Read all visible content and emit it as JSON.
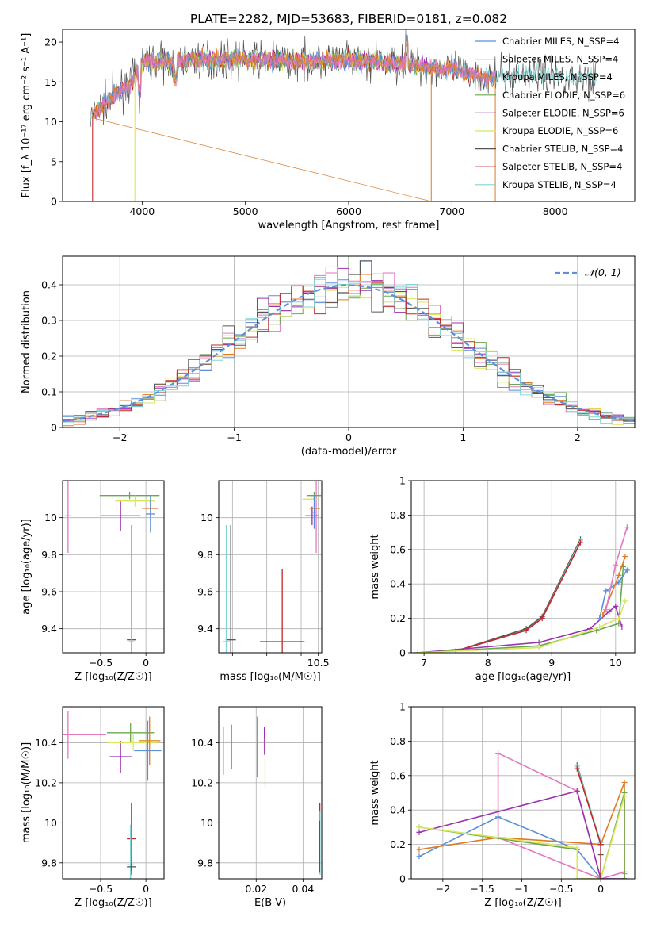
{
  "figure": {
    "title": "PLATE=2282, MJD=53683, FIBERID=0181, z=0.082"
  },
  "colors": {
    "chabrier_miles": "#5b8fd6",
    "salpeter_miles": "#e377c2",
    "kroupa_miles": "#e07b23",
    "chabrier_elodie": "#6aa84f",
    "salpeter_elodie": "#9b30b0",
    "kroupa_elodie": "#d8e85a",
    "chabrier_stelib": "#555555",
    "salpeter_stelib": "#c0282a",
    "kroupa_stelib": "#7fd6d6",
    "grid": "#b0b0b0",
    "gauss": "#5b8fd6"
  },
  "chart_data": [
    {
      "id": "spectrum",
      "type": "line",
      "xlabel": "wavelength [Angstrom, rest frame]",
      "ylabel": "Flux [f_λ 10⁻¹⁷ erg cm⁻² s⁻¹ A⁻¹]",
      "xlim": [
        3230,
        8770
      ],
      "ylim": [
        0,
        21.6
      ],
      "xticks": [
        4000,
        5000,
        6000,
        7000,
        8000
      ],
      "yticks": [
        0,
        5,
        10,
        15,
        20
      ],
      "grid": false,
      "legend_position": "top-right",
      "legend": [
        "Chabrier MILES, N_SSP=4",
        "Salpeter MILES, N_SSP=4",
        "Kroupa MILES, N_SSP=4",
        "Chabrier ELODIE, N_SSP=6",
        "Salpeter ELODIE, N_SSP=6",
        "Kroupa ELODIE, N_SSP=6",
        "Chabrier STELIB, N_SSP=4",
        "Salpeter STELIB, N_SSP=4",
        "Kroupa STELIB, N_SSP=4"
      ],
      "continuum": {
        "x": [
          3500,
          3700,
          3900,
          4000,
          4200,
          4500,
          5000,
          5500,
          6000,
          6500,
          7000,
          7400,
          7800,
          8200,
          8400
        ],
        "y": [
          10.5,
          13.0,
          15.0,
          17.5,
          17.5,
          17.8,
          17.8,
          17.6,
          17.8,
          17.3,
          16.5,
          15.5,
          16.0,
          15.5,
          15.8
        ]
      },
      "dips": [
        {
          "x": 3520,
          "series": "salpeter_stelib",
          "y": 0
        },
        {
          "x": 3930,
          "series": "kroupa_elodie",
          "y": 0
        },
        {
          "x": 6800,
          "series": "kroupa_miles",
          "y": 0
        },
        {
          "x": 7420,
          "series": "kroupa_miles",
          "y": 0
        }
      ]
    },
    {
      "id": "residuals",
      "type": "bar",
      "xlabel": "(data-model)/error",
      "ylabel": "Normed distribution",
      "xlim": [
        -2.5,
        2.5
      ],
      "ylim": [
        0,
        0.48
      ],
      "xticks": [
        -2,
        -1,
        0,
        1,
        2
      ],
      "yticks": [
        0.0,
        0.1,
        0.2,
        0.3,
        0.4
      ],
      "grid": true,
      "legend_position": "top-right",
      "legend": [
        "𝒩(0, 1)"
      ],
      "bin_width": 0.1
    },
    {
      "id": "age_vs_Z",
      "type": "scatter",
      "xlabel": "Z [log₁₀(Z/Z☉)]",
      "ylabel": "age  [log₁₀(age/yr)]",
      "xlim": [
        -0.92,
        0.2
      ],
      "ylim": [
        9.27,
        10.2
      ],
      "xticks": [
        -0.5,
        0.0
      ],
      "yticks": [
        9.4,
        9.6,
        9.8,
        10.0
      ],
      "grid": true,
      "points": [
        {
          "s": "salpeter_miles",
          "x": -0.86,
          "y": 10.01,
          "ex": 0.04,
          "ey": 0.2
        },
        {
          "s": "salpeter_elodie",
          "x": -0.28,
          "y": 10.01,
          "ex": 0.22,
          "ey": 0.08
        },
        {
          "s": "chabrier_elodie",
          "x": -0.18,
          "y": 10.12,
          "ex": 0.33,
          "ey": 0.02
        },
        {
          "s": "kroupa_elodie",
          "x": -0.12,
          "y": 10.09,
          "ex": 0.22,
          "ey": 0.03
        },
        {
          "s": "kroupa_miles",
          "x": 0.05,
          "y": 10.05,
          "ex": 0.09,
          "ey": 0.04
        },
        {
          "s": "chabrier_miles",
          "x": 0.05,
          "y": 10.02,
          "ex": 0.05,
          "ey": 0.1
        },
        {
          "s": "chabrier_stelib",
          "x": -0.16,
          "y": 9.34,
          "ex": 0.05,
          "ey": 0.62
        },
        {
          "s": "kroupa_stelib",
          "x": -0.16,
          "y": 9.33,
          "ex": 0.03,
          "ey": 0.63
        }
      ]
    },
    {
      "id": "age_vs_mass",
      "type": "scatter",
      "xlabel": "mass [log₁₀(M/M☉)]",
      "ylabel": "",
      "xlim": [
        7.6,
        10.6
      ],
      "ylim": [
        9.27,
        10.2
      ],
      "xticks": [
        8.0,
        9.0,
        10.0,
        10.5
      ],
      "xtick_labels": [
        "",
        "",
        "",
        "10.5"
      ],
      "yticks": [
        9.4,
        9.6,
        9.8,
        10.0
      ],
      "grid": true,
      "points": [
        {
          "s": "salpeter_miles",
          "x": 10.44,
          "y": 10.01,
          "ex": 0.03,
          "ey": 0.2
        },
        {
          "s": "salpeter_elodie",
          "x": 10.32,
          "y": 10.01,
          "ex": 0.2,
          "ey": 0.05
        },
        {
          "s": "kroupa_elodie",
          "x": 10.29,
          "y": 10.1,
          "ex": 0.25,
          "ey": 0.02
        },
        {
          "s": "chabrier_elodie",
          "x": 10.38,
          "y": 10.12,
          "ex": 0.2,
          "ey": 0.02
        },
        {
          "s": "kroupa_miles",
          "x": 10.4,
          "y": 10.05,
          "ex": 0.15,
          "ey": 0.05
        },
        {
          "s": "chabrier_miles",
          "x": 10.38,
          "y": 10.03,
          "ex": 0.05,
          "ey": 0.09
        },
        {
          "s": "salpeter_stelib",
          "x": 9.45,
          "y": 9.33,
          "ex": 0.65,
          "ey": 0.39
        },
        {
          "s": "chabrier_stelib",
          "x": 7.95,
          "y": 9.34,
          "ex": 0.15,
          "ey": 0.62
        },
        {
          "s": "kroupa_stelib",
          "x": 7.82,
          "y": 9.33,
          "ex": 0.1,
          "ey": 0.63
        }
      ]
    },
    {
      "id": "massweight_vs_age",
      "type": "line",
      "xlabel": "age  [log₁₀(age/yr)]",
      "ylabel": "mass weight",
      "xlim": [
        6.8,
        10.3
      ],
      "ylim": [
        0,
        1.0
      ],
      "xticks": [
        7,
        8,
        9,
        10
      ],
      "yticks": [
        0.0,
        0.2,
        0.4,
        0.6,
        0.8,
        1.0
      ],
      "grid": true,
      "series": [
        {
          "s": "chabrier_stelib",
          "x": [
            7.5,
            8.6,
            8.85,
            9.45
          ],
          "y": [
            0.01,
            0.14,
            0.21,
            0.66
          ]
        },
        {
          "s": "kroupa_stelib",
          "x": [
            7.5,
            8.6,
            8.85,
            9.45
          ],
          "y": [
            0.01,
            0.13,
            0.2,
            0.65
          ]
        },
        {
          "s": "salpeter_stelib",
          "x": [
            7.5,
            8.6,
            8.85,
            9.45
          ],
          "y": [
            0.01,
            0.13,
            0.2,
            0.64
          ]
        },
        {
          "s": "salpeter_elodie",
          "x": [
            6.9,
            8.8,
            9.6,
            9.9,
            10.0,
            10.1
          ],
          "y": [
            0.0,
            0.06,
            0.14,
            0.24,
            0.27,
            0.15
          ]
        },
        {
          "s": "chabrier_elodie",
          "x": [
            6.9,
            8.8,
            9.7,
            10.05,
            10.12
          ],
          "y": [
            0.0,
            0.04,
            0.13,
            0.17,
            0.5
          ]
        },
        {
          "s": "kroupa_elodie",
          "x": [
            6.9,
            8.8,
            9.75,
            10.05,
            10.15
          ],
          "y": [
            0.0,
            0.03,
            0.15,
            0.2,
            0.3
          ]
        },
        {
          "s": "chabrier_miles",
          "x": [
            9.75,
            9.85,
            10.05,
            10.18
          ],
          "y": [
            0.2,
            0.36,
            0.41,
            0.48
          ]
        },
        {
          "s": "kroupa_miles",
          "x": [
            9.8,
            10.05,
            10.15
          ],
          "y": [
            0.22,
            0.45,
            0.56
          ]
        },
        {
          "s": "salpeter_miles",
          "x": [
            9.85,
            10.0,
            10.18
          ],
          "y": [
            0.25,
            0.51,
            0.73
          ]
        }
      ]
    },
    {
      "id": "mass_vs_Z",
      "type": "scatter",
      "xlabel": "Z [log₁₀(Z/Z☉)]",
      "ylabel": "mass [log₁₀(M/M☉)]",
      "xlim": [
        -0.92,
        0.2
      ],
      "ylim": [
        9.72,
        10.58
      ],
      "xticks": [
        -0.5,
        0.0
      ],
      "yticks": [
        9.8,
        10.0,
        10.2,
        10.4
      ],
      "grid": true,
      "points": [
        {
          "s": "salpeter_miles",
          "x": -0.86,
          "y": 10.44,
          "ex": 0.42,
          "ey": 0.12
        },
        {
          "s": "salpeter_elodie",
          "x": -0.28,
          "y": 10.33,
          "ex": 0.12,
          "ey": 0.08
        },
        {
          "s": "chabrier_elodie",
          "x": -0.17,
          "y": 10.45,
          "ex": 0.26,
          "ey": 0.05
        },
        {
          "s": "kroupa_elodie",
          "x": -0.14,
          "y": 10.4,
          "ex": 0.28,
          "ey": 0.04
        },
        {
          "s": "chabrier_miles",
          "x": 0.02,
          "y": 10.36,
          "ex": 0.15,
          "ey": 0.15
        },
        {
          "s": "kroupa_miles",
          "x": 0.04,
          "y": 10.41,
          "ex": 0.12,
          "ey": 0.12
        },
        {
          "s": "salpeter_stelib",
          "x": -0.16,
          "y": 9.92,
          "ex": 0.05,
          "ey": 0.18
        },
        {
          "s": "kroupa_stelib",
          "x": -0.17,
          "y": 9.79,
          "ex": 0.04,
          "ey": 0.2
        },
        {
          "s": "chabrier_stelib",
          "x": -0.16,
          "y": 9.78,
          "ex": 0.05,
          "ey": 0.02
        }
      ]
    },
    {
      "id": "mass_vs_ebv",
      "type": "scatter",
      "xlabel": "E(B-V)",
      "ylabel": "",
      "xlim": [
        0.004,
        0.048
      ],
      "ylim": [
        9.72,
        10.58
      ],
      "xticks": [
        0.02,
        0.04
      ],
      "yticks": [
        9.8,
        10.0,
        10.2,
        10.4
      ],
      "grid": true,
      "points": [
        {
          "s": "salpeter_miles",
          "x": 0.006,
          "y": 10.36,
          "ey": 0.12
        },
        {
          "s": "kroupa_miles",
          "x": 0.0095,
          "y": 10.38,
          "ey": 0.11
        },
        {
          "s": "chabrier_miles",
          "x": 0.0205,
          "y": 10.38,
          "ey": 0.15
        },
        {
          "s": "salpeter_elodie",
          "x": 0.0235,
          "y": 10.41,
          "ey": 0.07
        },
        {
          "s": "kroupa_elodie",
          "x": 0.0238,
          "y": 10.3,
          "ey": 0.12
        },
        {
          "s": "salpeter_stelib",
          "x": 0.0472,
          "y": 9.98,
          "ey": 0.12
        },
        {
          "s": "kroupa_stelib",
          "x": 0.0473,
          "y": 9.9,
          "ey": 0.16
        },
        {
          "s": "chabrier_stelib",
          "x": 0.0471,
          "y": 9.88,
          "ey": 0.13
        }
      ]
    },
    {
      "id": "massweight_vs_Z",
      "type": "line",
      "xlabel": "Z [log₁₀(Z/Z☉)]",
      "ylabel": "mass weight",
      "xlim": [
        -2.4,
        0.43
      ],
      "ylim": [
        0,
        1.0
      ],
      "xticks": [
        -2.0,
        -1.5,
        -1.0,
        -0.5,
        0.0
      ],
      "yticks": [
        0.0,
        0.2,
        0.4,
        0.6,
        0.8,
        1.0
      ],
      "grid": true,
      "series": [
        {
          "s": "salpeter_miles",
          "x": [
            -0.0,
            -1.3,
            -1.3,
            -0.3,
            0.0,
            0.3,
            0.3
          ],
          "y": [
            0.0,
            0.24,
            0.73,
            0.51,
            0.0,
            0.04,
            0.03
          ]
        },
        {
          "s": "chabrier_miles",
          "x": [
            -2.3,
            -1.3,
            -0.3,
            0.0,
            0.3
          ],
          "y": [
            0.13,
            0.36,
            0.17,
            0.0,
            0.0
          ]
        },
        {
          "s": "kroupa_miles",
          "x": [
            -2.3,
            -1.3,
            0.0,
            0.3,
            0.3
          ],
          "y": [
            0.17,
            0.24,
            0.2,
            0.56,
            0.0
          ]
        },
        {
          "s": "salpeter_elodie",
          "x": [
            -2.3,
            -0.3,
            0.0,
            0.3
          ],
          "y": [
            0.27,
            0.51,
            0.0,
            0.0
          ]
        },
        {
          "s": "chabrier_elodie",
          "x": [
            -2.3,
            -0.3,
            -0.3,
            0.0,
            0.3,
            0.3
          ],
          "y": [
            0.3,
            0.17,
            0.0,
            0.0,
            0.5,
            0.0
          ]
        },
        {
          "s": "kroupa_elodie",
          "x": [
            -2.3,
            -0.3,
            -0.3,
            0.0,
            0.3
          ],
          "y": [
            0.3,
            0.18,
            0.0,
            0.0,
            0.48
          ]
        },
        {
          "s": "chabrier_stelib",
          "x": [
            -0.3,
            0.0,
            0.0,
            0.0
          ],
          "y": [
            0.66,
            0.2,
            0.14,
            0.0
          ]
        },
        {
          "s": "kroupa_stelib",
          "x": [
            -0.3,
            0.0,
            0.0
          ],
          "y": [
            0.65,
            0.21,
            0.0
          ]
        },
        {
          "s": "salpeter_stelib",
          "x": [
            -0.3,
            0.0,
            0.0
          ],
          "y": [
            0.64,
            0.2,
            0.0
          ]
        }
      ]
    }
  ]
}
